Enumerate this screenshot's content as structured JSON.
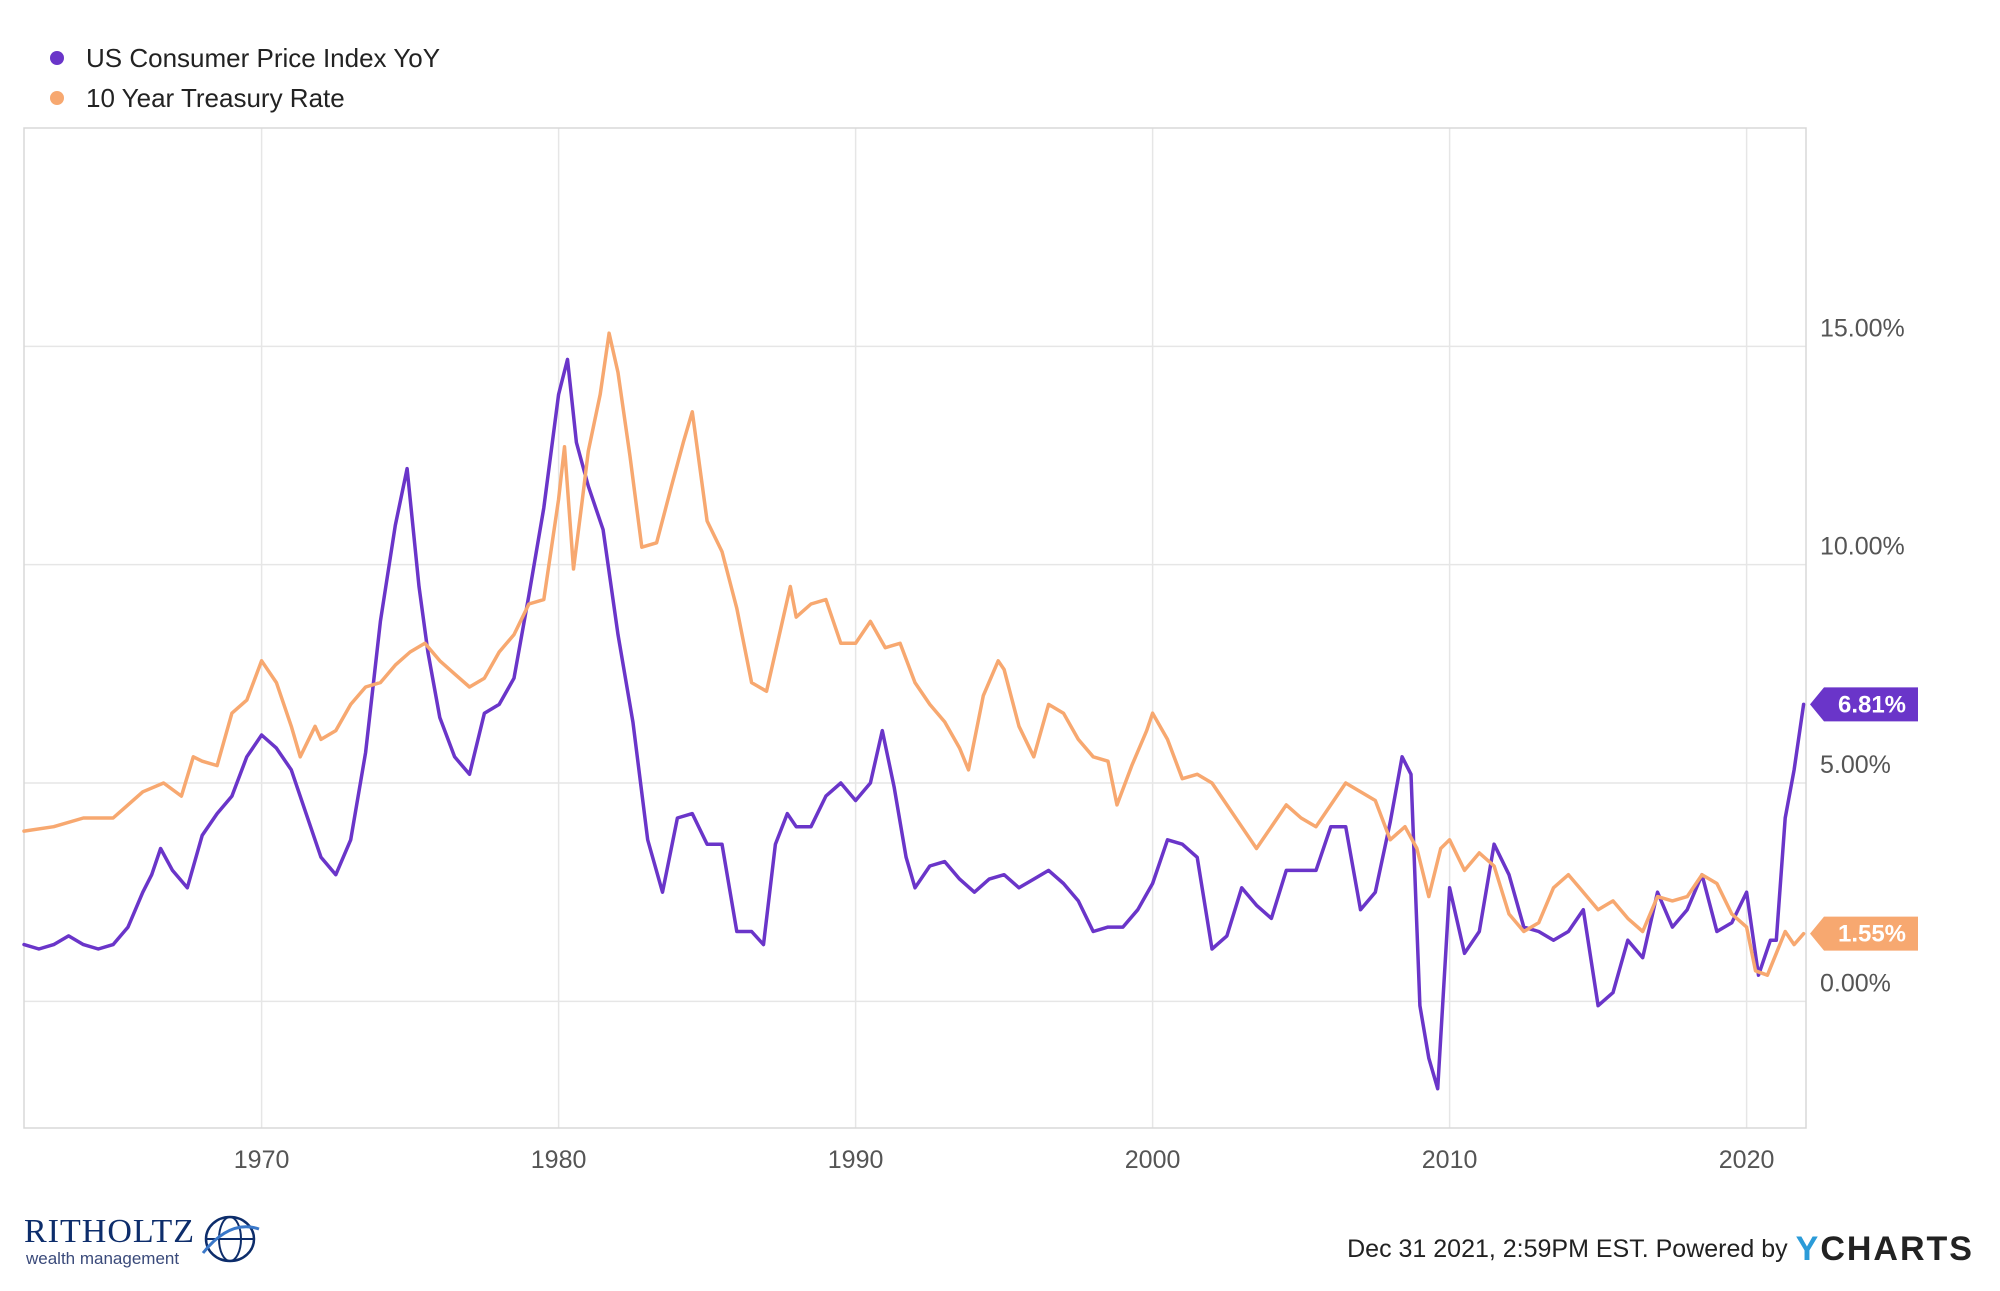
{
  "chart_data": {
    "type": "line",
    "title": "",
    "xlabel": "",
    "ylabel": "",
    "xlim": [
      1962.0,
      2022.0
    ],
    "ylim": [
      -2.9,
      20.0
    ],
    "x_ticks": [
      1970,
      1980,
      1990,
      2000,
      2010,
      2020
    ],
    "y_ticks": [
      0,
      5,
      10,
      15
    ],
    "y_tick_labels": [
      "0.00%",
      "5.00%",
      "10.00%",
      "15.00%"
    ],
    "grid": true,
    "legend_position": "top-left",
    "series": [
      {
        "name": "US Consumer Price Index YoY",
        "color": "#6a35c9",
        "end_label": "6.81%",
        "x": [
          1962.0,
          1962.5,
          1963.0,
          1963.5,
          1964.0,
          1964.5,
          1965.0,
          1965.5,
          1966.0,
          1966.3,
          1966.6,
          1967.0,
          1967.5,
          1968.0,
          1968.5,
          1969.0,
          1969.5,
          1970.0,
          1970.5,
          1971.0,
          1971.5,
          1972.0,
          1972.5,
          1973.0,
          1973.5,
          1974.0,
          1974.5,
          1974.9,
          1975.3,
          1975.6,
          1976.0,
          1976.5,
          1977.0,
          1977.5,
          1978.0,
          1978.5,
          1979.0,
          1979.5,
          1980.0,
          1980.3,
          1980.6,
          1981.0,
          1981.5,
          1982.0,
          1982.5,
          1983.0,
          1983.5,
          1984.0,
          1984.5,
          1985.0,
          1985.5,
          1986.0,
          1986.5,
          1986.9,
          1987.3,
          1987.7,
          1988.0,
          1988.5,
          1989.0,
          1989.5,
          1990.0,
          1990.5,
          1990.9,
          1991.3,
          1991.7,
          1992.0,
          1992.5,
          1993.0,
          1993.5,
          1994.0,
          1994.5,
          1995.0,
          1995.5,
          1996.0,
          1996.5,
          1997.0,
          1997.5,
          1998.0,
          1998.5,
          1999.0,
          1999.5,
          2000.0,
          2000.5,
          2001.0,
          2001.5,
          2002.0,
          2002.5,
          2003.0,
          2003.5,
          2004.0,
          2004.5,
          2005.0,
          2005.5,
          2006.0,
          2006.5,
          2007.0,
          2007.5,
          2008.0,
          2008.4,
          2008.7,
          2009.0,
          2009.3,
          2009.6,
          2010.0,
          2010.5,
          2011.0,
          2011.5,
          2012.0,
          2012.5,
          2013.0,
          2013.5,
          2014.0,
          2014.5,
          2015.0,
          2015.5,
          2016.0,
          2016.5,
          2017.0,
          2017.5,
          2018.0,
          2018.5,
          2019.0,
          2019.5,
          2020.0,
          2020.4,
          2020.8,
          2021.0,
          2021.3,
          2021.6,
          2021.92
        ],
        "y": [
          1.3,
          1.2,
          1.3,
          1.5,
          1.3,
          1.2,
          1.3,
          1.7,
          2.5,
          2.9,
          3.5,
          3.0,
          2.6,
          3.8,
          4.3,
          4.7,
          5.6,
          6.1,
          5.8,
          5.3,
          4.3,
          3.3,
          2.9,
          3.7,
          5.7,
          8.7,
          10.9,
          12.2,
          9.5,
          8.0,
          6.5,
          5.6,
          5.2,
          6.6,
          6.8,
          7.4,
          9.3,
          11.3,
          13.9,
          14.7,
          12.8,
          11.8,
          10.8,
          8.4,
          6.4,
          3.7,
          2.5,
          4.2,
          4.3,
          3.6,
          3.6,
          1.6,
          1.6,
          1.3,
          3.6,
          4.3,
          4.0,
          4.0,
          4.7,
          5.0,
          4.6,
          5.0,
          6.2,
          4.9,
          3.3,
          2.6,
          3.1,
          3.2,
          2.8,
          2.5,
          2.8,
          2.9,
          2.6,
          2.8,
          3.0,
          2.7,
          2.3,
          1.6,
          1.7,
          1.7,
          2.1,
          2.7,
          3.7,
          3.6,
          3.3,
          1.2,
          1.5,
          2.6,
          2.2,
          1.9,
          3.0,
          3.0,
          3.0,
          4.0,
          4.0,
          2.1,
          2.5,
          4.1,
          5.6,
          5.2,
          -0.1,
          -1.3,
          -2.0,
          2.6,
          1.1,
          1.6,
          3.6,
          2.9,
          1.7,
          1.6,
          1.4,
          1.6,
          2.1,
          -0.1,
          0.2,
          1.4,
          1.0,
          2.5,
          1.7,
          2.1,
          2.9,
          1.6,
          1.8,
          2.5,
          0.6,
          1.4,
          1.4,
          4.2,
          5.3,
          6.8
        ]
      },
      {
        "name": "10 Year Treasury Rate",
        "color": "#f7a870",
        "end_label": "1.55%",
        "x": [
          1962.0,
          1963.0,
          1964.0,
          1965.0,
          1966.0,
          1966.7,
          1967.3,
          1967.7,
          1968.0,
          1968.5,
          1969.0,
          1969.5,
          1970.0,
          1970.5,
          1971.0,
          1971.3,
          1971.8,
          1972.0,
          1972.5,
          1973.0,
          1973.5,
          1974.0,
          1974.5,
          1975.0,
          1975.5,
          1976.0,
          1976.5,
          1977.0,
          1977.5,
          1978.0,
          1978.5,
          1979.0,
          1979.5,
          1980.0,
          1980.2,
          1980.5,
          1980.8,
          1981.0,
          1981.4,
          1981.7,
          1982.0,
          1982.4,
          1982.8,
          1983.3,
          1983.8,
          1984.2,
          1984.5,
          1985.0,
          1985.5,
          1986.0,
          1986.5,
          1987.0,
          1987.5,
          1987.8,
          1988.0,
          1988.5,
          1989.0,
          1989.5,
          1990.0,
          1990.5,
          1991.0,
          1991.5,
          1992.0,
          1992.5,
          1993.0,
          1993.5,
          1993.8,
          1994.3,
          1994.8,
          1995.0,
          1995.5,
          1996.0,
          1996.5,
          1997.0,
          1997.5,
          1998.0,
          1998.5,
          1998.8,
          1999.3,
          1999.8,
          2000.0,
          2000.5,
          2001.0,
          2001.5,
          2002.0,
          2002.5,
          2003.0,
          2003.5,
          2004.0,
          2004.5,
          2005.0,
          2005.5,
          2006.0,
          2006.5,
          2007.0,
          2007.5,
          2008.0,
          2008.5,
          2008.9,
          2009.3,
          2009.7,
          2010.0,
          2010.5,
          2011.0,
          2011.5,
          2012.0,
          2012.5,
          2013.0,
          2013.5,
          2014.0,
          2014.5,
          2015.0,
          2015.5,
          2016.0,
          2016.5,
          2017.0,
          2017.5,
          2018.0,
          2018.5,
          2019.0,
          2019.5,
          2020.0,
          2020.3,
          2020.7,
          2021.0,
          2021.3,
          2021.6,
          2021.92
        ],
        "y": [
          3.9,
          4.0,
          4.2,
          4.2,
          4.8,
          5.0,
          4.7,
          5.6,
          5.5,
          5.4,
          6.6,
          6.9,
          7.8,
          7.3,
          6.3,
          5.6,
          6.3,
          6.0,
          6.2,
          6.8,
          7.2,
          7.3,
          7.7,
          8.0,
          8.2,
          7.8,
          7.5,
          7.2,
          7.4,
          8.0,
          8.4,
          9.1,
          9.2,
          11.5,
          12.7,
          9.9,
          11.5,
          12.6,
          13.9,
          15.3,
          14.4,
          12.5,
          10.4,
          10.5,
          11.8,
          12.8,
          13.5,
          11.0,
          10.3,
          9.0,
          7.3,
          7.1,
          8.6,
          9.5,
          8.8,
          9.1,
          9.2,
          8.2,
          8.2,
          8.7,
          8.1,
          8.2,
          7.3,
          6.8,
          6.4,
          5.8,
          5.3,
          7.0,
          7.8,
          7.6,
          6.3,
          5.6,
          6.8,
          6.6,
          6.0,
          5.6,
          5.5,
          4.5,
          5.4,
          6.2,
          6.6,
          6.0,
          5.1,
          5.2,
          5.0,
          4.5,
          4.0,
          3.5,
          4.0,
          4.5,
          4.2,
          4.0,
          4.5,
          5.0,
          4.8,
          4.6,
          3.7,
          4.0,
          3.5,
          2.4,
          3.5,
          3.7,
          3.0,
          3.4,
          3.1,
          2.0,
          1.6,
          1.8,
          2.6,
          2.9,
          2.5,
          2.1,
          2.3,
          1.9,
          1.6,
          2.4,
          2.3,
          2.4,
          2.9,
          2.7,
          2.0,
          1.7,
          0.7,
          0.6,
          1.1,
          1.6,
          1.3,
          1.55
        ]
      }
    ]
  },
  "footer": {
    "timestamp": "Dec 31 2021, 2:59PM EST. Powered by",
    "brand_y": "Y",
    "brand_rest": "CHARTS"
  },
  "logo": {
    "name": "RITHOLTZ",
    "sub": "wealth management"
  }
}
